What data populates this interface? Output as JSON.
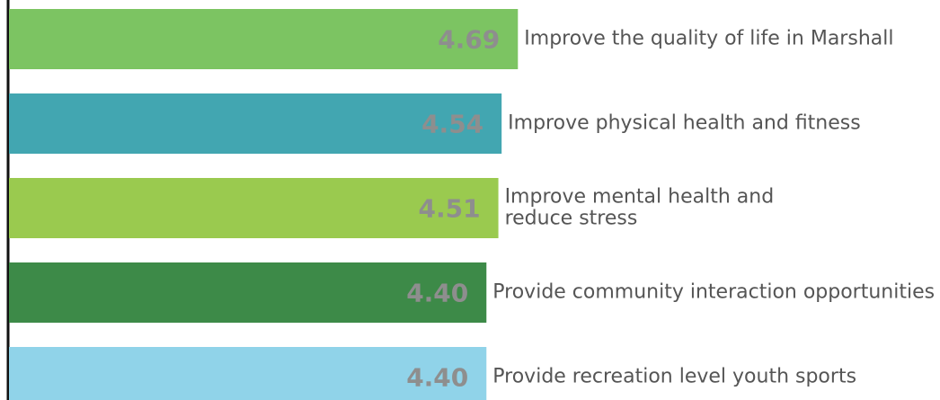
{
  "chart_data": {
    "type": "barh",
    "categories": [
      [
        "Improve the quality of life in Marshall"
      ],
      [
        "Improve physical health and fitness"
      ],
      [
        "Improve mental health and",
        "reduce stress"
      ],
      [
        "Provide community interaction opportunities"
      ],
      [
        "Provide recreation level youth sports"
      ]
    ],
    "values": [
      4.69,
      4.54,
      4.51,
      4.4,
      4.4
    ],
    "value_labels": [
      "4.69",
      "4.54",
      "4.51",
      "4.40",
      "4.40"
    ],
    "colors": [
      "#7cc462",
      "#42a6b1",
      "#9aca4f",
      "#3d8a48",
      "#90d3e9"
    ],
    "xlim": [
      0,
      8.58
    ]
  }
}
